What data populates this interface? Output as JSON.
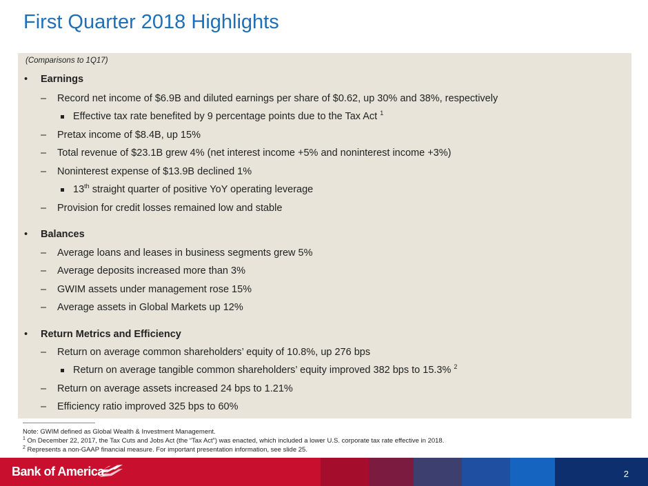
{
  "title": "First Quarter 2018 Highlights",
  "comparison_note": "(Comparisons to 1Q17)",
  "sections": {
    "earnings": {
      "heading": "Earnings",
      "items": [
        "Record net income of $6.9B and diluted earnings per share of $0.62, up 30% and 38%, respectively",
        "Effective tax rate benefited by 9 percentage points due to the Tax Act",
        "Pretax income of $8.4B, up 15%",
        "Total revenue of $23.1B grew 4% (net interest income +5% and noninterest income +3%)",
        "Noninterest expense of $13.9B declined 1%",
        "13",
        "th",
        "straight quarter of positive YoY operating leverage",
        "Provision for credit losses remained low and stable"
      ],
      "tax_sup": "1"
    },
    "balances": {
      "heading": "Balances",
      "items": [
        "Average loans and leases in business segments grew 5%",
        "Average deposits increased more than 3%",
        "GWIM assets under management rose 15%",
        "Average assets in Global Markets up 12%"
      ]
    },
    "returns": {
      "heading": "Return Metrics and Efficiency",
      "items": [
        "Return on average common shareholders’ equity of 10.8%, up 276 bps",
        "Return on average tangible common shareholders’ equity improved 382 bps to 15.3%",
        "Return on average assets increased 24 bps to 1.21%",
        "Efficiency ratio improved 325 bps to 60%"
      ],
      "rotce_sup": "2"
    }
  },
  "bullet_symbol": "•",
  "dash_symbol": "–",
  "footnotes": {
    "note": "Note: GWIM defined as Global Wealth & Investment Management.",
    "f1_num": "1",
    "f1": "On December 22, 2017, the Tax Cuts and Jobs Act (the “Tax Act”) was enacted, which included a lower U.S. corporate tax rate effective in 2018.",
    "f2_num": "2",
    "f2": "Represents a non-GAAP financial measure. For important presentation information, see slide 25."
  },
  "footer": {
    "logo": "Bank of America",
    "page_number": "2",
    "colors": [
      "#c8102e",
      "#c8102e",
      "#a50d2c",
      "#7a1b3f",
      "#3d3f6e",
      "#1f4fa0",
      "#1565c0",
      "#0d2f6e"
    ]
  }
}
